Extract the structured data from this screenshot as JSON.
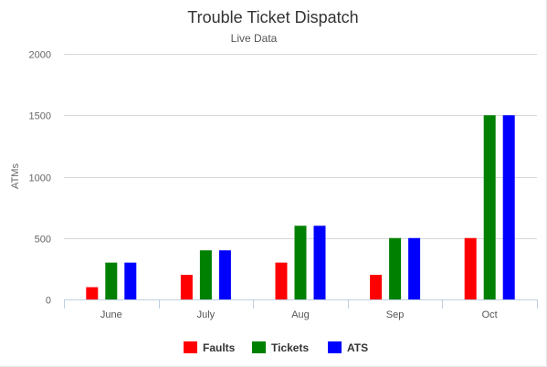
{
  "chart_data": {
    "type": "bar",
    "title": "Trouble Ticket Dispatch",
    "subtitle": "Live Data",
    "xlabel": "",
    "ylabel": "ATMs",
    "categories": [
      "June",
      "July",
      "Aug",
      "Sep",
      "Oct"
    ],
    "ylim": [
      0,
      2000
    ],
    "yticks": [
      0,
      500,
      1000,
      1500,
      2000
    ],
    "grid": true,
    "legend_position": "bottom",
    "series": [
      {
        "name": "Faults",
        "color": "#ff0000",
        "values": [
          100,
          200,
          300,
          200,
          500
        ]
      },
      {
        "name": "Tickets",
        "color": "#008000",
        "values": [
          300,
          400,
          600,
          500,
          1500
        ]
      },
      {
        "name": "ATS",
        "color": "#0000ff",
        "values": [
          300,
          400,
          600,
          500,
          1500
        ]
      }
    ]
  }
}
